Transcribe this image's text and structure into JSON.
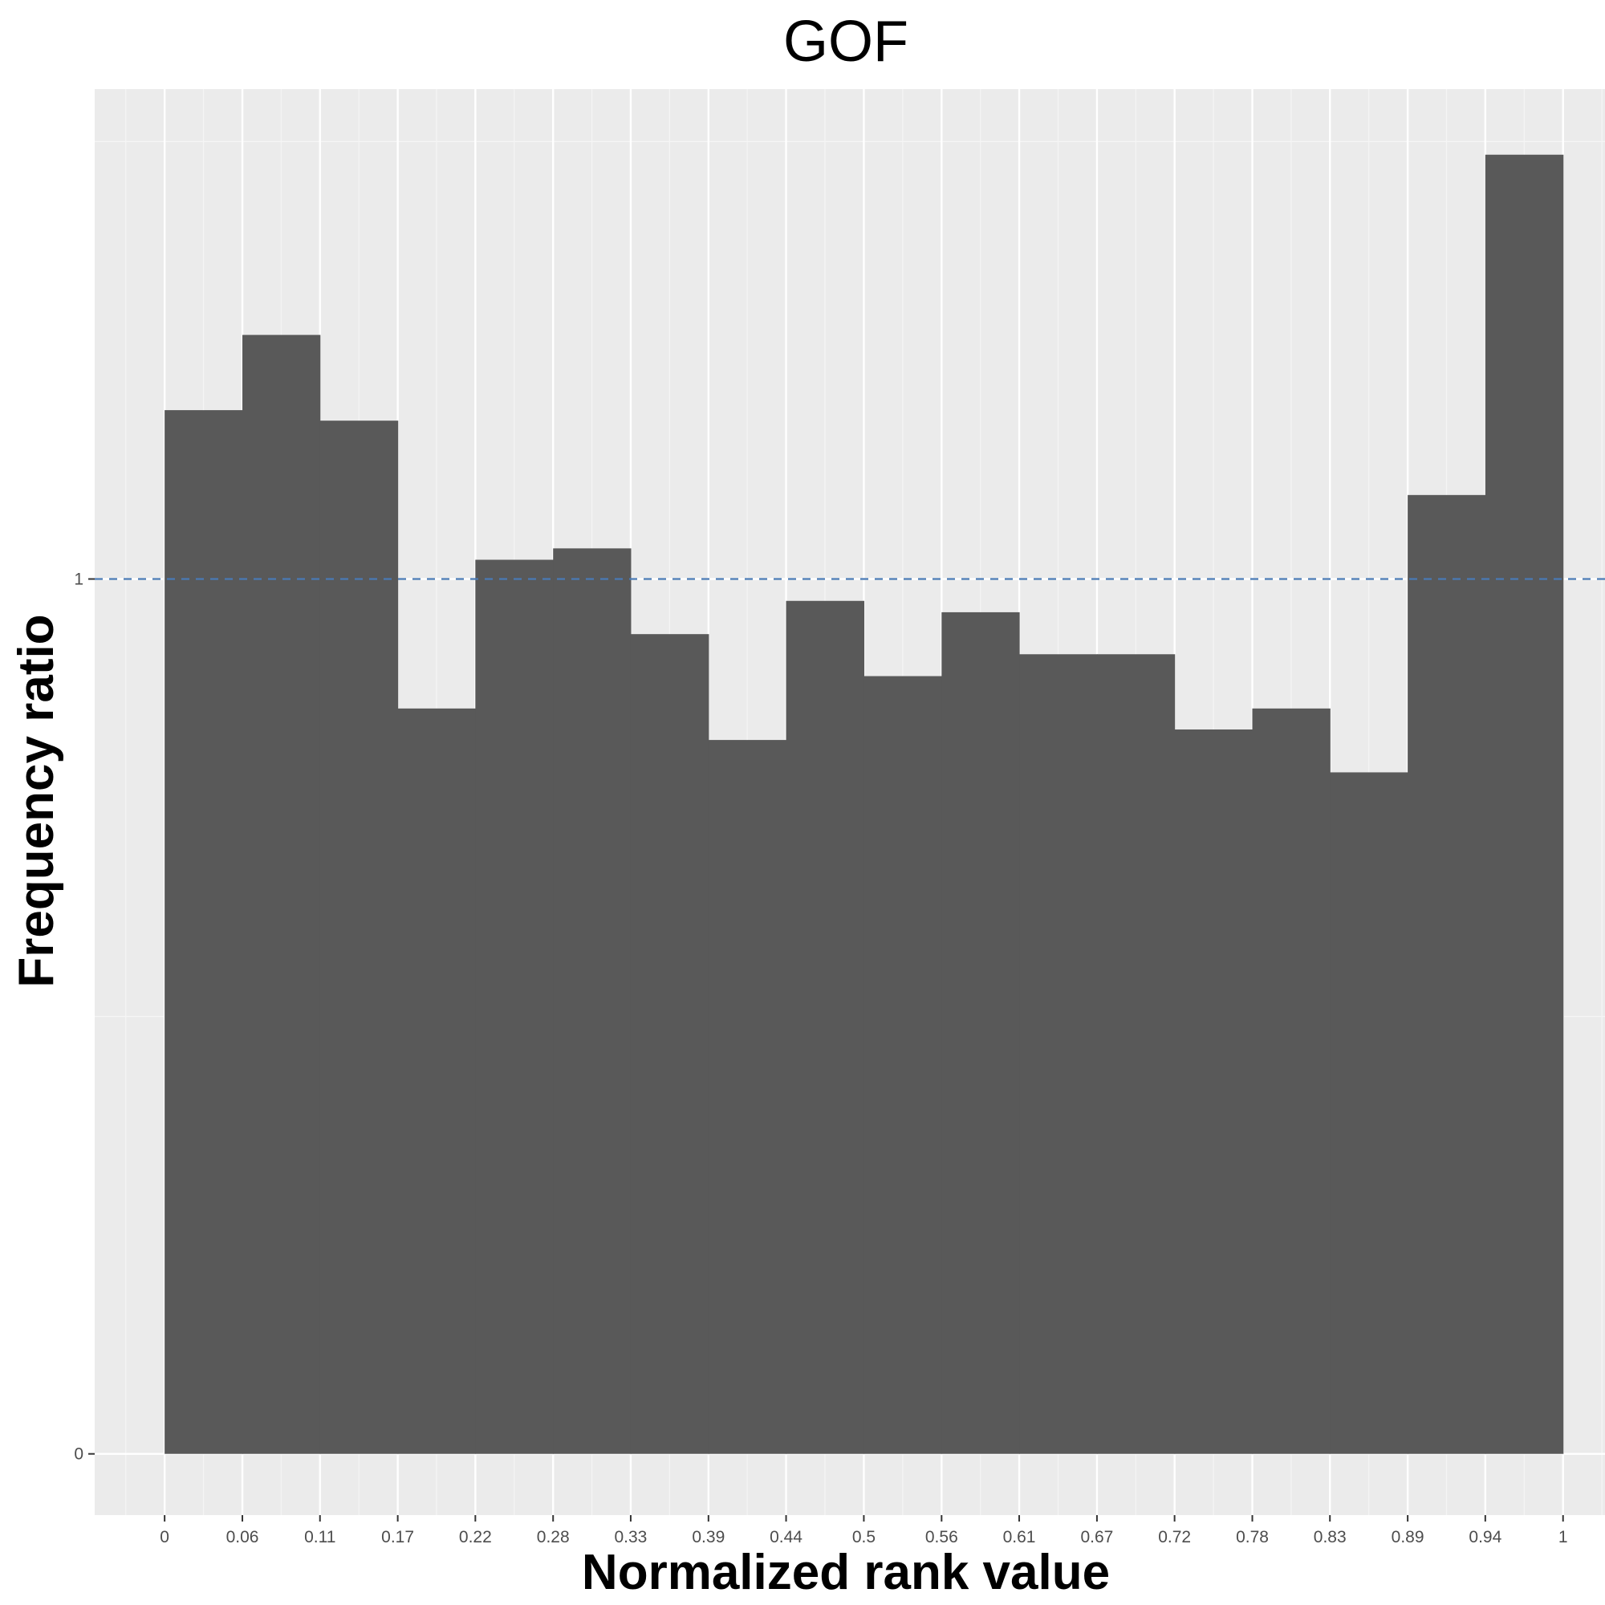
{
  "chart_data": {
    "type": "bar",
    "title": "GOF",
    "xlabel": "Normalized rank value",
    "ylabel": "Frequency ratio",
    "x_ticks": [
      "0",
      "0.06",
      "0.11",
      "0.17",
      "0.22",
      "0.28",
      "0.33",
      "0.39",
      "0.44",
      "0.5",
      "0.56",
      "0.61",
      "0.67",
      "0.72",
      "0.78",
      "0.83",
      "0.89",
      "0.94",
      "1"
    ],
    "y_ticks": [
      "0",
      "1"
    ],
    "bin_edges": [
      0,
      0.0556,
      0.1111,
      0.1667,
      0.2222,
      0.2778,
      0.3333,
      0.3889,
      0.4444,
      0.5,
      0.5556,
      0.6111,
      0.6667,
      0.7222,
      0.7778,
      0.8333,
      0.8889,
      0.9444,
      1
    ],
    "values": [
      1.193,
      1.279,
      1.181,
      0.852,
      1.022,
      1.035,
      0.937,
      0.816,
      0.975,
      0.889,
      0.962,
      0.914,
      0.914,
      0.828,
      0.852,
      0.779,
      1.096,
      1.485
    ],
    "xlim": [
      -0.05,
      1.03
    ],
    "ylim": [
      -0.07,
      1.56
    ],
    "reference_line": {
      "y": 1,
      "style": "dashed",
      "color": "#4a7ab5"
    },
    "grid": true,
    "colors": {
      "bar": "#595959",
      "panel": "#ebebeb",
      "grid": "#ffffff"
    }
  }
}
